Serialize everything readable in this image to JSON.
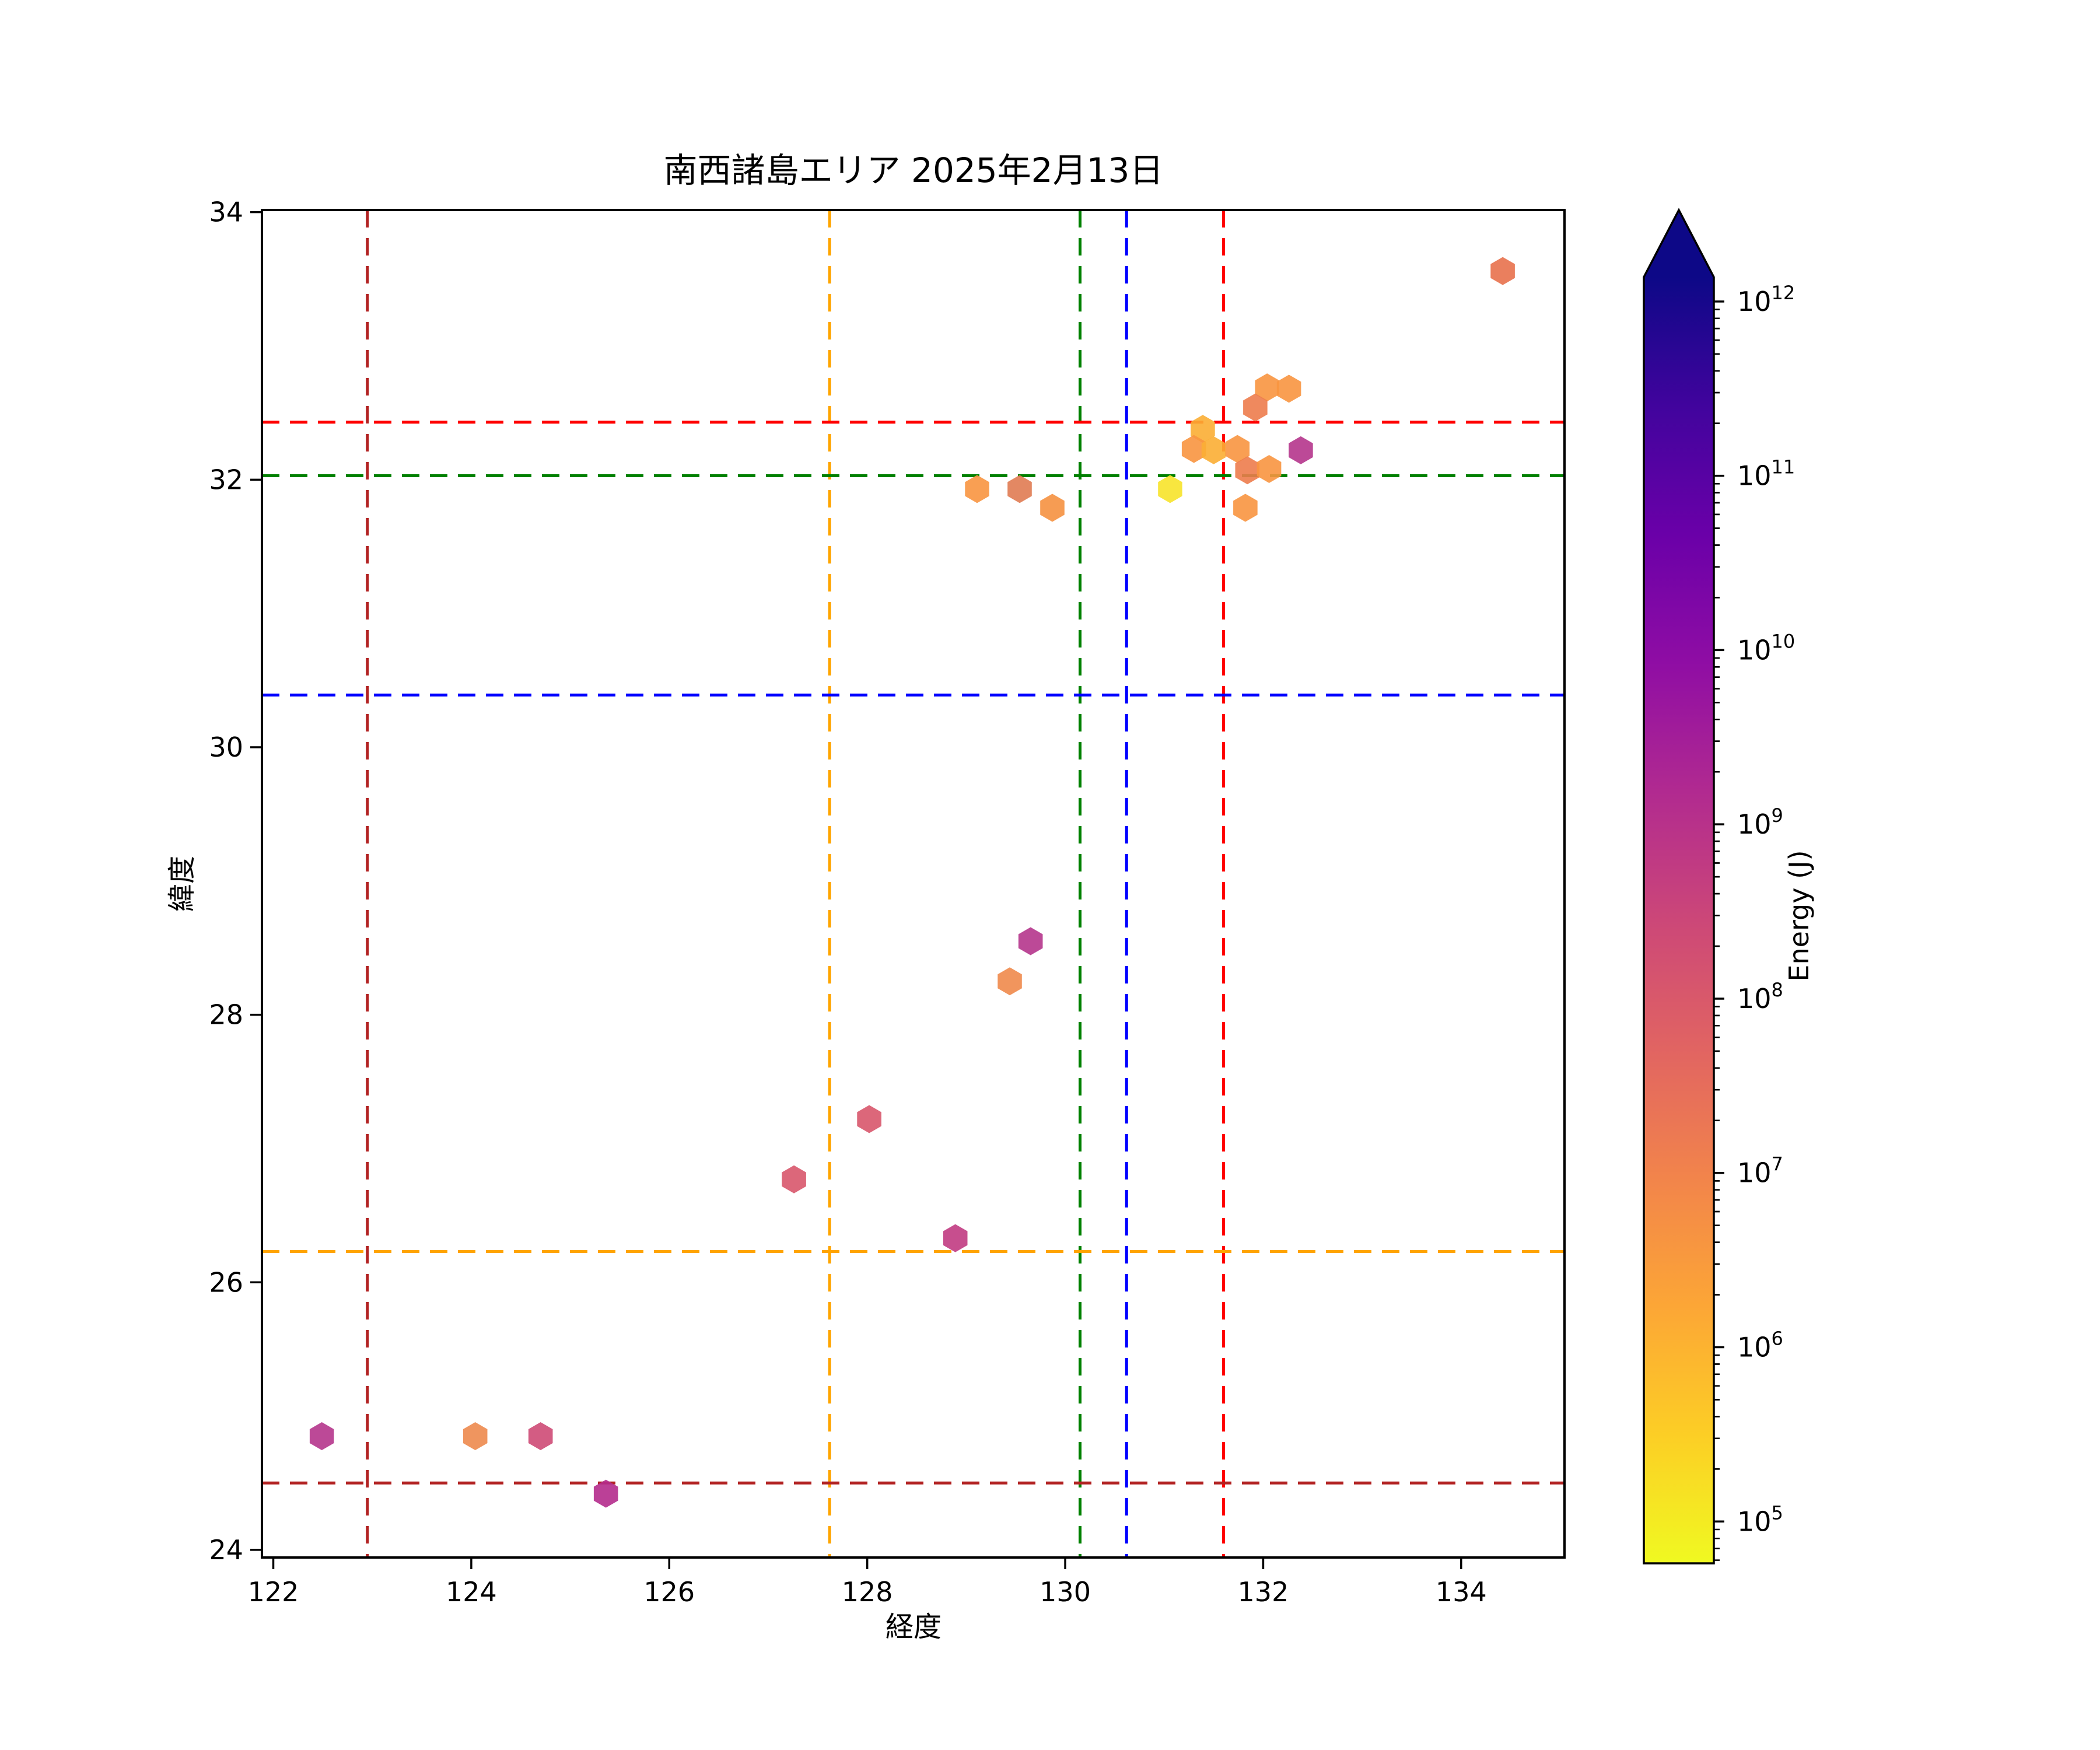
{
  "title": "南西諸島エリア 2025年2月13日",
  "axes": {
    "xlabel": "経度",
    "ylabel": "緯度",
    "xlim": [
      121.885,
      135.044
    ],
    "ylim": [
      23.943,
      34.016
    ],
    "xticks": [
      122,
      124,
      126,
      128,
      130,
      132,
      134
    ],
    "yticks": [
      24,
      26,
      28,
      30,
      32,
      34
    ],
    "grid": false
  },
  "colorbar": {
    "label": "Energy (J)",
    "scale": "log",
    "tick_exponents": [
      5,
      6,
      7,
      8,
      9,
      10,
      11,
      12
    ],
    "extend": "max",
    "log_min": 4.76,
    "log_max": 12.14,
    "gradient_top_to_bottom": [
      "#0d0887",
      "#41049d",
      "#6a00a8",
      "#8f0da4",
      "#b12a90",
      "#cc4778",
      "#e16462",
      "#f2844b",
      "#fca636",
      "#fcce25",
      "#f0f921"
    ]
  },
  "reference_lines": {
    "vertical": [
      {
        "lon": 122.95,
        "color": "#B22222"
      },
      {
        "lon": 127.62,
        "color": "#FFA500"
      },
      {
        "lon": 130.15,
        "color": "#008000"
      },
      {
        "lon": 130.62,
        "color": "#0000FF"
      },
      {
        "lon": 131.6,
        "color": "#FF0000"
      }
    ],
    "horizontal": [
      {
        "lat": 32.43,
        "color": "#FF0000"
      },
      {
        "lat": 32.03,
        "color": "#008000"
      },
      {
        "lat": 30.39,
        "color": "#0000FF"
      },
      {
        "lat": 26.23,
        "color": "#FFA500"
      },
      {
        "lat": 24.5,
        "color": "#B22222"
      }
    ]
  },
  "chart_data": {
    "type": "scatter",
    "marker": "hexagon",
    "x_field": "longitude",
    "y_field": "latitude",
    "color_field": "energy_j",
    "colormap": "plasma_r",
    "points": [
      {
        "lon": 132.04,
        "lat": 32.69,
        "energy_j": 4000000.0,
        "color": "#F89540"
      },
      {
        "lon": 132.26,
        "lat": 32.68,
        "energy_j": 4000000.0,
        "color": "#F89540"
      },
      {
        "lon": 131.92,
        "lat": 32.54,
        "energy_j": 13000000.0,
        "color": "#ED7C4C"
      },
      {
        "lon": 131.39,
        "lat": 32.38,
        "energy_j": 1600000.0,
        "color": "#FBAE34"
      },
      {
        "lon": 131.3,
        "lat": 32.23,
        "energy_j": 4000000.0,
        "color": "#F89540"
      },
      {
        "lon": 131.5,
        "lat": 32.22,
        "energy_j": 1600000.0,
        "color": "#FBAE34"
      },
      {
        "lon": 131.74,
        "lat": 32.23,
        "energy_j": 4000000.0,
        "color": "#F89540"
      },
      {
        "lon": 132.38,
        "lat": 32.22,
        "energy_j": 1000000000.0,
        "color": "#B5358C"
      },
      {
        "lon": 131.84,
        "lat": 32.07,
        "energy_j": 13000000.0,
        "color": "#ED7C4C"
      },
      {
        "lon": 132.06,
        "lat": 32.08,
        "energy_j": 4000000.0,
        "color": "#F89540"
      },
      {
        "lon": 131.06,
        "lat": 31.93,
        "energy_j": 160000.0,
        "color": "#F7E32A"
      },
      {
        "lon": 131.82,
        "lat": 31.79,
        "energy_j": 4000000.0,
        "color": "#F89540"
      },
      {
        "lon": 129.11,
        "lat": 31.93,
        "energy_j": 4000000.0,
        "color": "#F89540"
      },
      {
        "lon": 129.54,
        "lat": 31.93,
        "energy_j": 16000000.0,
        "color": "#E07B52"
      },
      {
        "lon": 129.87,
        "lat": 31.79,
        "energy_j": 5000000.0,
        "color": "#F59140"
      },
      {
        "lon": 129.65,
        "lat": 28.55,
        "energy_j": 1000000000.0,
        "color": "#B5358C"
      },
      {
        "lon": 129.44,
        "lat": 28.25,
        "energy_j": 8000000.0,
        "color": "#F08A4B"
      },
      {
        "lon": 128.02,
        "lat": 27.22,
        "energy_j": 100000000.0,
        "color": "#D8576B"
      },
      {
        "lon": 127.26,
        "lat": 26.77,
        "energy_j": 100000000.0,
        "color": "#D8576B"
      },
      {
        "lon": 128.89,
        "lat": 26.33,
        "energy_j": 400000000.0,
        "color": "#C13B82"
      },
      {
        "lon": 122.49,
        "lat": 24.85,
        "energy_j": 1000000000.0,
        "color": "#B5358C"
      },
      {
        "lon": 124.04,
        "lat": 24.85,
        "energy_j": 10000000.0,
        "color": "#ED894E"
      },
      {
        "lon": 124.7,
        "lat": 24.85,
        "energy_j": 200000000.0,
        "color": "#CE4A76"
      },
      {
        "lon": 125.36,
        "lat": 24.42,
        "energy_j": 1300000000.0,
        "color": "#B42B8C"
      },
      {
        "lon": 134.42,
        "lat": 33.56,
        "energy_j": 25000000.0,
        "color": "#E8714D"
      }
    ]
  }
}
